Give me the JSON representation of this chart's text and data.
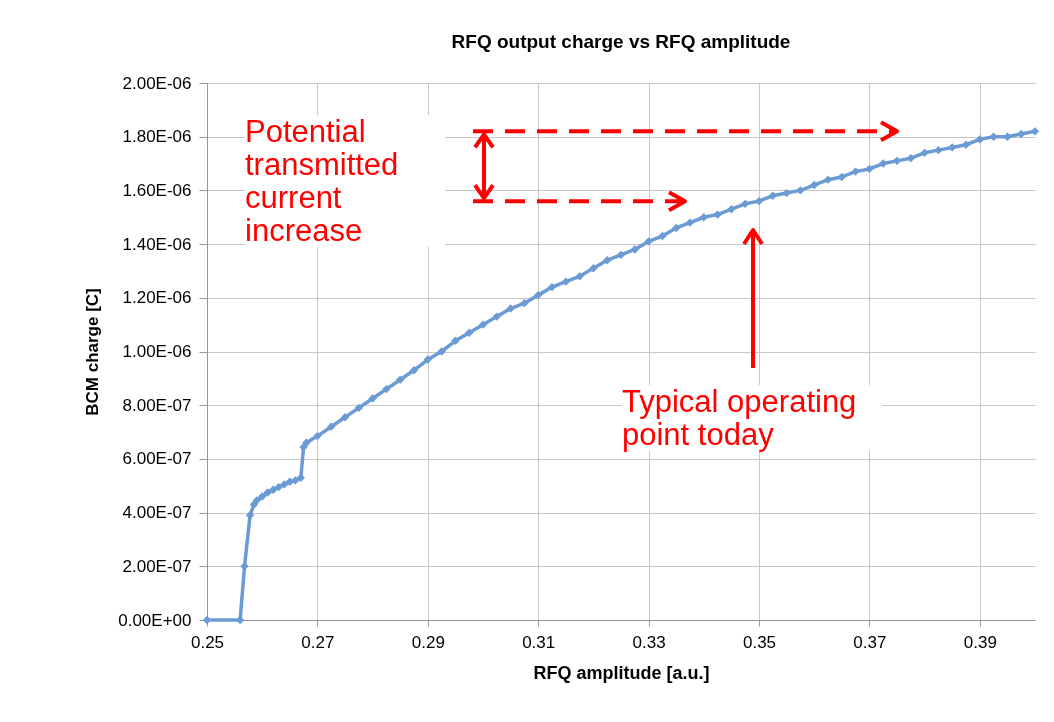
{
  "chart_data": {
    "type": "line",
    "title": "RFQ output charge vs RFQ amplitude",
    "xlabel": "RFQ amplitude [a.u.]",
    "ylabel": "BCM charge [C]",
    "xlim": [
      0.25,
      0.4
    ],
    "xticks": [
      0.25,
      0.27,
      0.29,
      0.31,
      0.33,
      0.35,
      0.37,
      0.39
    ],
    "ylim": [
      0,
      2e-06
    ],
    "yticks": [
      {
        "value": 0,
        "label": "0.00E+00"
      },
      {
        "value": 2e-07,
        "label": "2.00E-07"
      },
      {
        "value": 4e-07,
        "label": "4.00E-07"
      },
      {
        "value": 6e-07,
        "label": "6.00E-07"
      },
      {
        "value": 8e-07,
        "label": "8.00E-07"
      },
      {
        "value": 1e-06,
        "label": "1.00E-06"
      },
      {
        "value": 1.2e-06,
        "label": "1.20E-06"
      },
      {
        "value": 1.4e-06,
        "label": "1.40E-06"
      },
      {
        "value": 1.6e-06,
        "label": "1.60E-06"
      },
      {
        "value": 1.8e-06,
        "label": "1.80E-06"
      },
      {
        "value": 2e-06,
        "label": "2.00E-06"
      }
    ],
    "grid": true,
    "marker": "diamond",
    "line_style": "solid",
    "series": [
      {
        "color": "#6a9bd5",
        "x": [
          0.25,
          0.256,
          0.2568,
          0.2578,
          0.2585,
          0.259,
          0.26,
          0.261,
          0.262,
          0.263,
          0.264,
          0.265,
          0.266,
          0.267,
          0.2675,
          0.268,
          0.27,
          0.2725,
          0.275,
          0.2775,
          0.28,
          0.2825,
          0.285,
          0.2875,
          0.29,
          0.2925,
          0.295,
          0.2975,
          0.3,
          0.3025,
          0.305,
          0.3075,
          0.31,
          0.3125,
          0.315,
          0.3175,
          0.32,
          0.3225,
          0.325,
          0.3275,
          0.33,
          0.3325,
          0.335,
          0.3375,
          0.34,
          0.3425,
          0.345,
          0.3475,
          0.35,
          0.3525,
          0.355,
          0.3575,
          0.36,
          0.3625,
          0.365,
          0.3675,
          0.37,
          0.3725,
          0.375,
          0.3775,
          0.38,
          0.3825,
          0.385,
          0.3875,
          0.39,
          0.3925,
          0.395,
          0.3975,
          0.4
        ],
        "values": [
          0,
          0,
          2e-07,
          3.9e-07,
          4.3e-07,
          4.45e-07,
          4.6e-07,
          4.75e-07,
          4.85e-07,
          4.95e-07,
          5.05e-07,
          5.15e-07,
          5.2e-07,
          5.3e-07,
          6.44e-07,
          6.6e-07,
          6.85e-07,
          7.2e-07,
          7.55e-07,
          7.9e-07,
          8.25e-07,
          8.6e-07,
          8.95e-07,
          9.3e-07,
          9.7e-07,
          1e-06,
          1.04e-06,
          1.07e-06,
          1.1e-06,
          1.13e-06,
          1.16e-06,
          1.18e-06,
          1.21e-06,
          1.24e-06,
          1.26e-06,
          1.28e-06,
          1.31e-06,
          1.34e-06,
          1.36e-06,
          1.38e-06,
          1.41e-06,
          1.43e-06,
          1.46e-06,
          1.48e-06,
          1.5e-06,
          1.51e-06,
          1.53e-06,
          1.55e-06,
          1.56e-06,
          1.58e-06,
          1.59e-06,
          1.6e-06,
          1.62e-06,
          1.64e-06,
          1.65e-06,
          1.67e-06,
          1.68e-06,
          1.7e-06,
          1.71e-06,
          1.72e-06,
          1.74e-06,
          1.75e-06,
          1.76e-06,
          1.77e-06,
          1.79e-06,
          1.8e-06,
          1.8e-06,
          1.81e-06,
          1.82e-06
        ]
      }
    ],
    "ref_lines": [
      {
        "axis": "y",
        "value": 1.82e-06,
        "color": "#ff0000",
        "line_style": "dashed"
      },
      {
        "axis": "y",
        "value": 1.56e-06,
        "color": "#ff0000",
        "line_style": "dashed"
      }
    ],
    "annotations": [
      "Potential transmitted current increase",
      "Typical operating point today"
    ]
  }
}
